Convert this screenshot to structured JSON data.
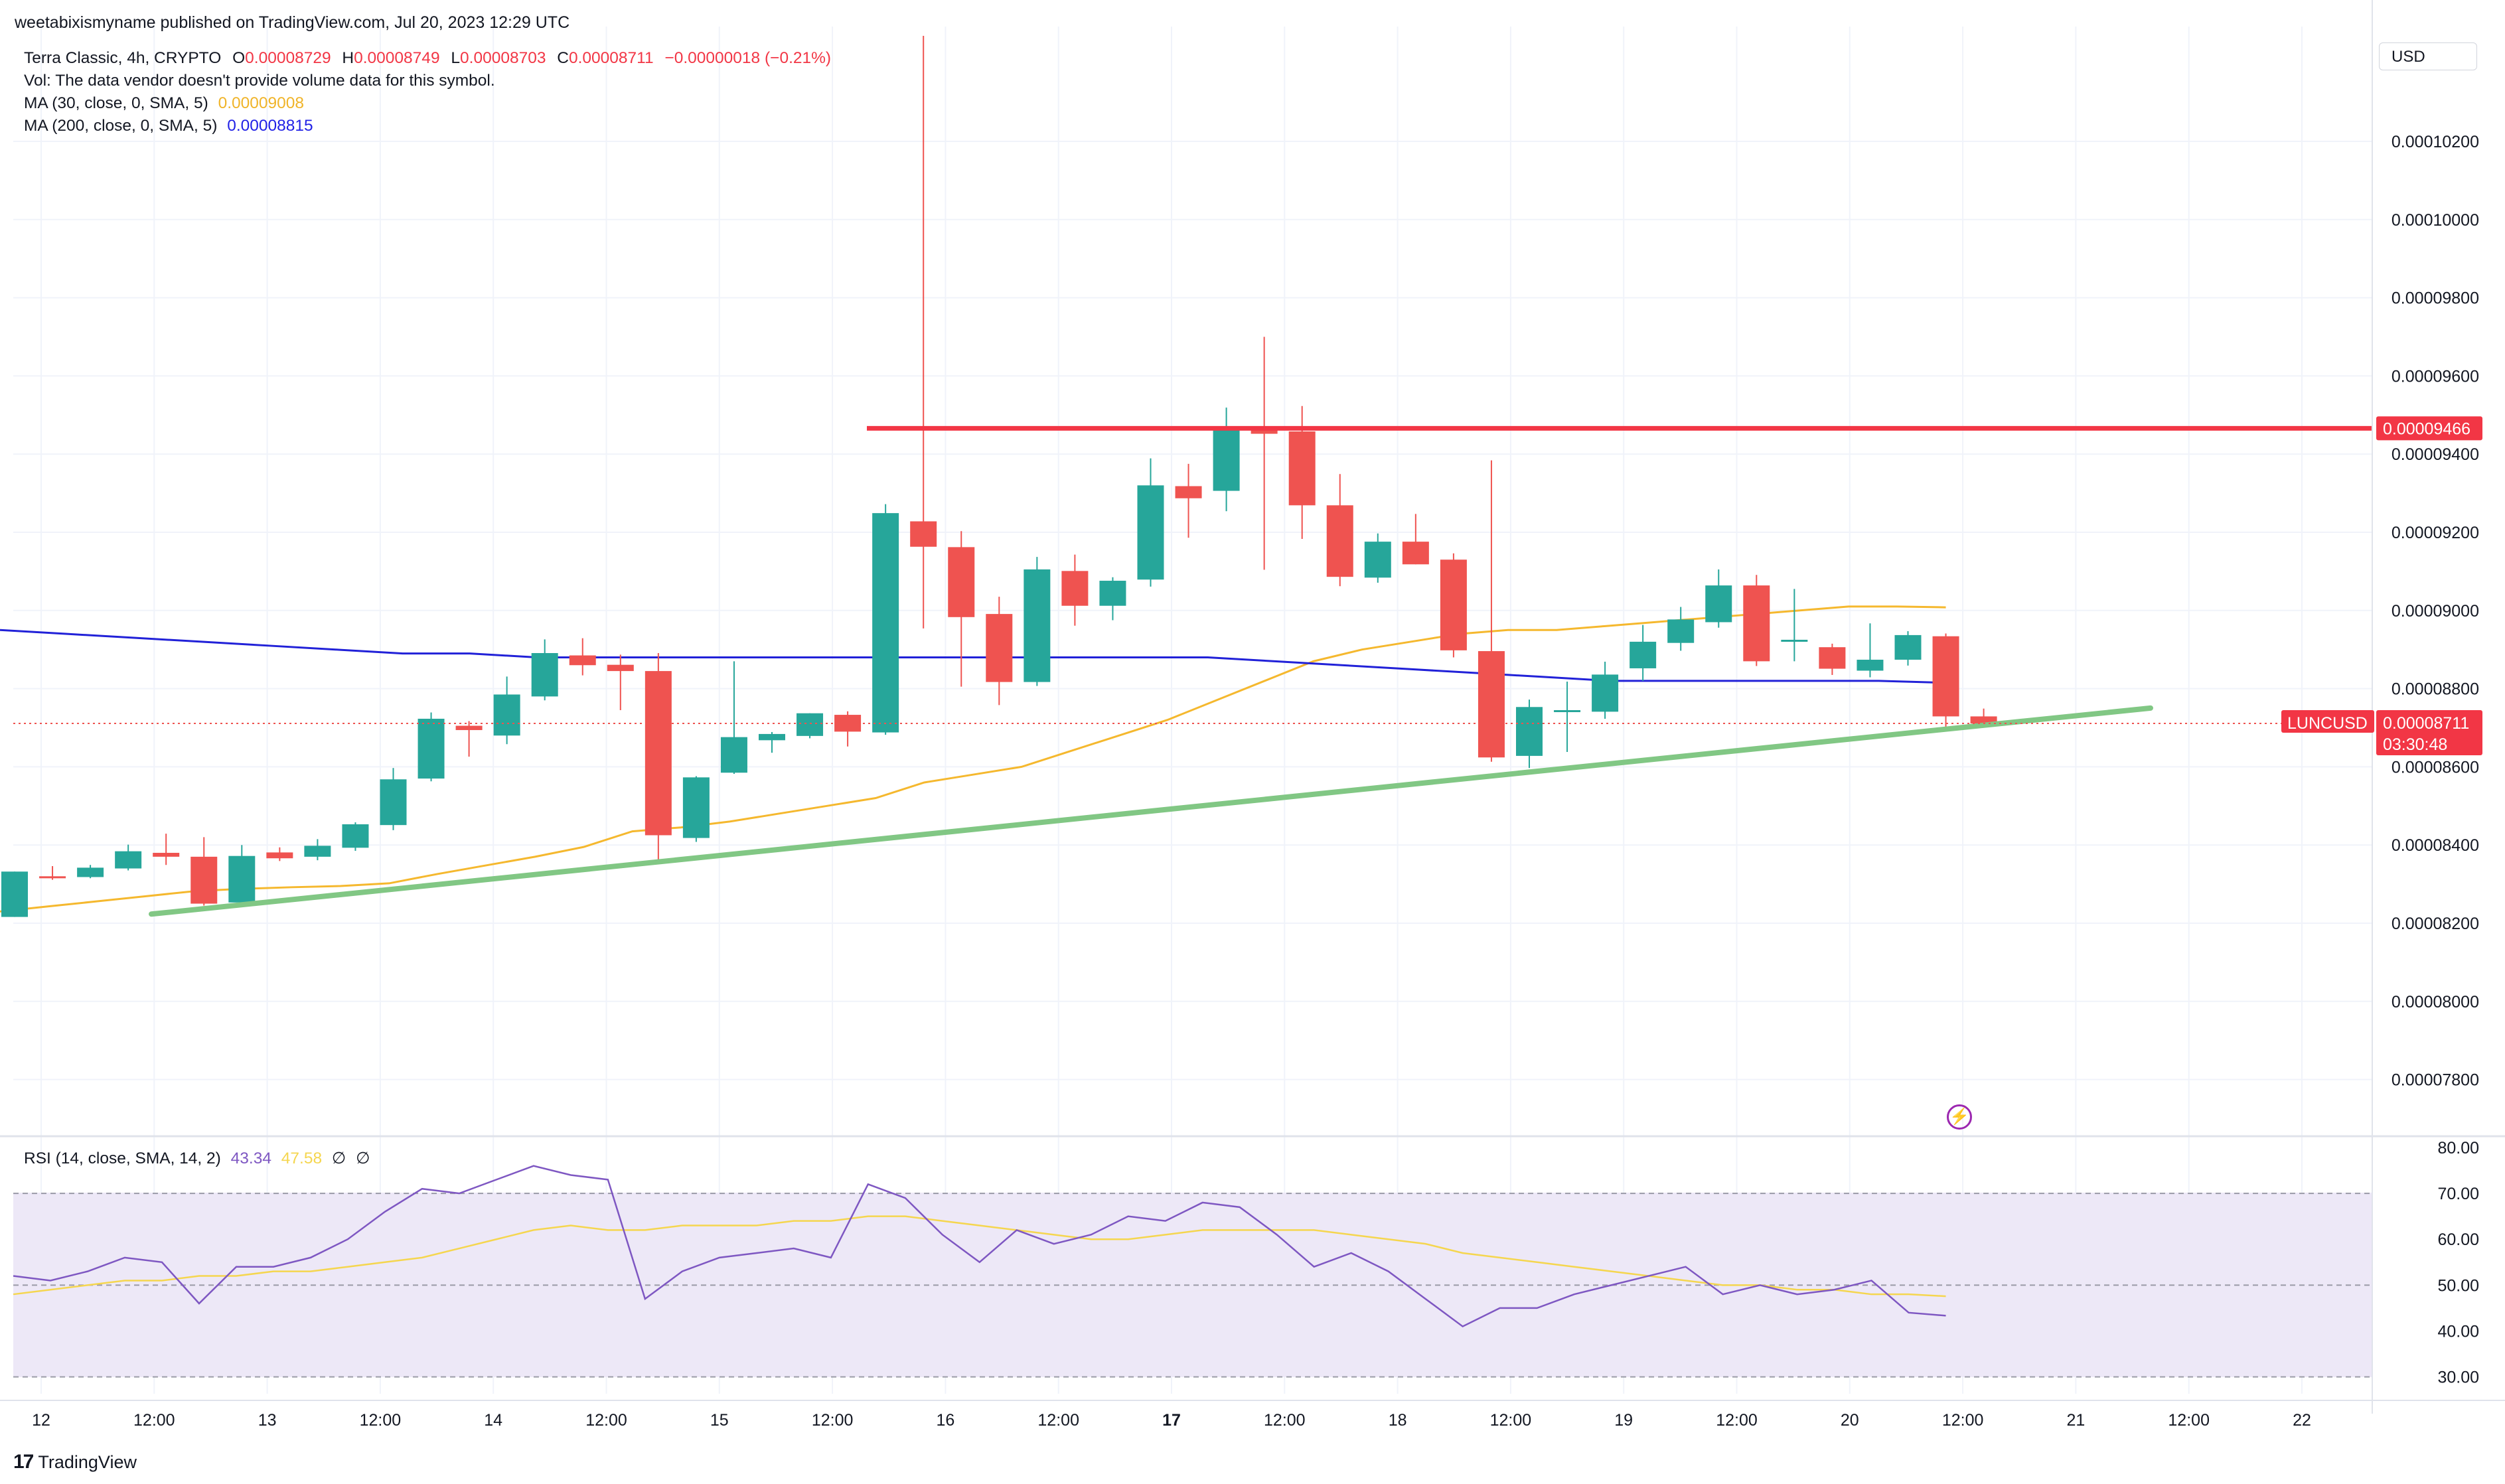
{
  "header": {
    "publisher": "weetabixismyname published on TradingView.com, Jul 20, 2023 12:29 UTC",
    "symbol_line": "Terra Classic, 4h, CRYPTO",
    "o_label": "O",
    "o_value": "0.00008729",
    "h_label": "H",
    "h_value": "0.00008749",
    "l_label": "L",
    "l_value": "0.00008703",
    "c_label": "C",
    "c_value": "0.00008711",
    "change": "−0.00000018 (−0.21%)",
    "vol_note": "Vol: The data vendor doesn't provide volume data for this symbol.",
    "ma30_label": "MA (30, close, 0, SMA, 5)",
    "ma30_value": "0.00009008",
    "ma200_label": "MA (200, close, 0, SMA, 5)",
    "ma200_value": "0.00008815"
  },
  "currency_button": "USD",
  "price_labels": {
    "resistance": "0.00009466",
    "symbol_tag": "LUNCUSD",
    "last_price": "0.00008711",
    "countdown": "03:30:48"
  },
  "rsi": {
    "label": "RSI (14, close, SMA, 14, 2)",
    "value": "43.34",
    "ma_value": "47.58",
    "extra1": "∅",
    "extra2": "∅"
  },
  "footer": {
    "brand": "TradingView",
    "brand_mark": "17"
  },
  "icons": {
    "alert": "lightning-icon"
  },
  "colors": {
    "up": "#26a69a",
    "down": "#ef5350",
    "ma30": "#f5b82e",
    "ma200": "#2121d8",
    "resistance": "#f23645",
    "trendline": "#81c784",
    "rsi": "#7e57c2",
    "rsi_ma": "#f5d64f",
    "rsi_band": "#ede8f7"
  },
  "chart_data": [
    {
      "type": "candlestick",
      "title": "Terra Classic, 4h, CRYPTO",
      "x_tick_labels": [
        "12",
        "12:00",
        "13",
        "12:00",
        "14",
        "12:00",
        "15",
        "12:00",
        "16",
        "12:00",
        "17",
        "12:00",
        "18",
        "12:00",
        "19",
        "12:00",
        "20",
        "12:00",
        "21",
        "12:00",
        "22"
      ],
      "y_tick_labels": [
        "0.00010200",
        "0.00010000",
        "0.00009800",
        "0.00009600",
        "0.00009400",
        "0.00009200",
        "0.00009000",
        "0.00008800",
        "0.00008600",
        "0.00008400",
        "0.00008200",
        "0.00008000",
        "0.00007800"
      ],
      "ylim": [
        7.74e-05,
        0.0001046
      ],
      "candles": [
        {
          "o": 8.216e-05,
          "h": 8.332e-05,
          "l": 8.216e-05,
          "c": 8.332e-05
        },
        {
          "o": 8.32e-05,
          "h": 8.346e-05,
          "l": 8.311e-05,
          "c": 8.318e-05
        },
        {
          "o": 8.318e-05,
          "h": 8.349e-05,
          "l": 8.315e-05,
          "c": 8.342e-05
        },
        {
          "o": 8.34e-05,
          "h": 8.401e-05,
          "l": 8.335e-05,
          "c": 8.384e-05
        },
        {
          "o": 8.38e-05,
          "h": 8.429e-05,
          "l": 8.349e-05,
          "c": 8.37e-05
        },
        {
          "o": 8.37e-05,
          "h": 8.42e-05,
          "l": 8.245e-05,
          "c": 8.25e-05
        },
        {
          "o": 8.253e-05,
          "h": 8.4e-05,
          "l": 8.253e-05,
          "c": 8.372e-05
        },
        {
          "o": 8.381e-05,
          "h": 8.394e-05,
          "l": 8.359e-05,
          "c": 8.366e-05
        },
        {
          "o": 8.37e-05,
          "h": 8.415e-05,
          "l": 8.361e-05,
          "c": 8.398e-05
        },
        {
          "o": 8.393e-05,
          "h": 8.458e-05,
          "l": 8.385e-05,
          "c": 8.453e-05
        },
        {
          "o": 8.451e-05,
          "h": 8.597e-05,
          "l": 8.438e-05,
          "c": 8.568e-05
        },
        {
          "o": 8.57e-05,
          "h": 8.739e-05,
          "l": 8.563e-05,
          "c": 8.723e-05
        },
        {
          "o": 8.705e-05,
          "h": 8.717e-05,
          "l": 8.626e-05,
          "c": 8.694e-05
        },
        {
          "o": 8.68e-05,
          "h": 8.831e-05,
          "l": 8.658e-05,
          "c": 8.785e-05
        },
        {
          "o": 8.78e-05,
          "h": 8.926e-05,
          "l": 8.77e-05,
          "c": 8.891e-05
        },
        {
          "o": 8.885e-05,
          "h": 8.929e-05,
          "l": 8.834e-05,
          "c": 8.86e-05
        },
        {
          "o": 8.861e-05,
          "h": 8.887e-05,
          "l": 8.745e-05,
          "c": 8.845e-05
        },
        {
          "o": 8.845e-05,
          "h": 8.891e-05,
          "l": 8.354e-05,
          "c": 8.425e-05
        },
        {
          "o": 8.418e-05,
          "h": 8.576e-05,
          "l": 8.408e-05,
          "c": 8.573e-05
        },
        {
          "o": 8.585e-05,
          "h": 8.87e-05,
          "l": 8.582e-05,
          "c": 8.676e-05
        },
        {
          "o": 8.668e-05,
          "h": 8.689e-05,
          "l": 8.636e-05,
          "c": 8.684e-05
        },
        {
          "o": 8.679e-05,
          "h": 8.737e-05,
          "l": 8.673e-05,
          "c": 8.737e-05
        },
        {
          "o": 8.733e-05,
          "h": 8.742e-05,
          "l": 8.652e-05,
          "c": 8.69e-05
        },
        {
          "o": 8.688e-05,
          "h": 9.272e-05,
          "l": 8.682e-05,
          "c": 9.249e-05
        },
        {
          "o": 9.228e-05,
          "h": 0.0001047,
          "l": 8.954e-05,
          "c": 9.163e-05
        },
        {
          "o": 9.162e-05,
          "h": 9.203e-05,
          "l": 8.805e-05,
          "c": 8.983e-05
        },
        {
          "o": 8.991e-05,
          "h": 9.035e-05,
          "l": 8.758e-05,
          "c": 8.817e-05
        },
        {
          "o": 8.817e-05,
          "h": 9.137e-05,
          "l": 8.807e-05,
          "c": 9.105e-05
        },
        {
          "o": 9.101e-05,
          "h": 9.143e-05,
          "l": 8.961e-05,
          "c": 9.012e-05
        },
        {
          "o": 9.012e-05,
          "h": 9.085e-05,
          "l": 8.975e-05,
          "c": 9.076e-05
        },
        {
          "o": 9.079e-05,
          "h": 9.389e-05,
          "l": 9.061e-05,
          "c": 9.32e-05
        },
        {
          "o": 9.318e-05,
          "h": 9.375e-05,
          "l": 9.186e-05,
          "c": 9.287e-05
        },
        {
          "o": 9.306e-05,
          "h": 9.519e-05,
          "l": 9.254e-05,
          "c": 9.469e-05
        },
        {
          "o": 9.466e-05,
          "h": 9.7e-05,
          "l": 9.104e-05,
          "c": 9.452e-05
        },
        {
          "o": 9.458e-05,
          "h": 9.523e-05,
          "l": 9.183e-05,
          "c": 9.269e-05
        },
        {
          "o": 9.269e-05,
          "h": 9.349e-05,
          "l": 9.062e-05,
          "c": 9.086e-05
        },
        {
          "o": 9.084e-05,
          "h": 9.197e-05,
          "l": 9.071e-05,
          "c": 9.176e-05
        },
        {
          "o": 9.176e-05,
          "h": 9.247e-05,
          "l": 9.118e-05,
          "c": 9.118e-05
        },
        {
          "o": 9.13e-05,
          "h": 9.146e-05,
          "l": 8.88e-05,
          "c": 8.898e-05
        },
        {
          "o": 8.896e-05,
          "h": 9.384e-05,
          "l": 8.613e-05,
          "c": 8.624e-05
        },
        {
          "o": 8.628e-05,
          "h": 8.772e-05,
          "l": 8.597e-05,
          "c": 8.753e-05
        },
        {
          "o": 8.745e-05,
          "h": 8.818e-05,
          "l": 8.638e-05,
          "c": 8.745e-05
        },
        {
          "o": 8.741e-05,
          "h": 8.869e-05,
          "l": 8.723e-05,
          "c": 8.836e-05
        },
        {
          "o": 8.852e-05,
          "h": 8.963e-05,
          "l": 8.82e-05,
          "c": 8.92e-05
        },
        {
          "o": 8.917e-05,
          "h": 9.009e-05,
          "l": 8.897e-05,
          "c": 8.977e-05
        },
        {
          "o": 8.97e-05,
          "h": 9.105e-05,
          "l": 8.956e-05,
          "c": 9.064e-05
        },
        {
          "o": 9.064e-05,
          "h": 9.091e-05,
          "l": 8.858e-05,
          "c": 8.87e-05
        },
        {
          "o": 8.922e-05,
          "h": 9.055e-05,
          "l": 8.87e-05,
          "c": 8.925e-05
        },
        {
          "o": 8.906e-05,
          "h": 8.915e-05,
          "l": 8.835e-05,
          "c": 8.851e-05
        },
        {
          "o": 8.846e-05,
          "h": 8.967e-05,
          "l": 8.829e-05,
          "c": 8.874e-05
        },
        {
          "o": 8.874e-05,
          "h": 8.947e-05,
          "l": 8.859e-05,
          "c": 8.937e-05
        },
        {
          "o": 8.934e-05,
          "h": 8.941e-05,
          "l": 8.697e-05,
          "c": 8.729e-05
        },
        {
          "o": 8.729e-05,
          "h": 8.749e-05,
          "l": 8.703e-05,
          "c": 8.711e-05
        }
      ],
      "series": [
        {
          "name": "MA (30, close, 0, SMA, 5)",
          "values": [
            8.23e-05,
            8.243e-05,
            8.256e-05,
            8.269e-05,
            8.282e-05,
            8.288e-05,
            8.292e-05,
            8.295e-05,
            8.302e-05,
            8.326e-05,
            8.348e-05,
            8.37e-05,
            8.395e-05,
            8.435e-05,
            8.445e-05,
            8.46e-05,
            8.48e-05,
            8.5e-05,
            8.52e-05,
            8.56e-05,
            8.58e-05,
            8.6e-05,
            8.64e-05,
            8.68e-05,
            8.72e-05,
            8.77e-05,
            8.82e-05,
            8.87e-05,
            8.9e-05,
            8.92e-05,
            8.94e-05,
            8.95e-05,
            8.95e-05,
            8.96e-05,
            8.97e-05,
            8.98e-05,
            8.99e-05,
            9e-05,
            9.01e-05,
            9.01e-05,
            9.008e-05
          ]
        }
      ],
      "ma200": [
        8.95e-05,
        8.94e-05,
        8.93e-05,
        8.92e-05,
        8.91e-05,
        8.9e-05,
        8.89e-05,
        8.89e-05,
        8.88e-05,
        8.88e-05,
        8.88e-05,
        8.88e-05,
        8.88e-05,
        8.88e-05,
        8.88e-05,
        8.88e-05,
        8.88e-05,
        8.88e-05,
        8.88e-05,
        8.87e-05,
        8.86e-05,
        8.85e-05,
        8.84e-05,
        8.83e-05,
        8.82e-05,
        8.82e-05,
        8.82e-05,
        8.82e-05,
        8.82e-05,
        8.815e-05
      ],
      "resistance_level": 9.466e-05,
      "trendline": [
        [
          8.2233e-05,
          8.7503e-05
        ]
      ],
      "last_price": 8.711e-05
    },
    {
      "type": "line",
      "title": "RSI (14, close, SMA, 14, 2)",
      "y_tick_labels": [
        "80.00",
        "70.00",
        "60.00",
        "50.00",
        "40.00",
        "30.00"
      ],
      "ylim": [
        27.5,
        81
      ],
      "bands": [
        30,
        50,
        70
      ],
      "series": [
        {
          "name": "RSI",
          "values": [
            52,
            51,
            53,
            56,
            55,
            46,
            54,
            54,
            56,
            60,
            66,
            71,
            70,
            73,
            76,
            74,
            73,
            47,
            53,
            56,
            57,
            58,
            56,
            72,
            69,
            61,
            55,
            62,
            59,
            61,
            65,
            64,
            68,
            67,
            61,
            54,
            57,
            53,
            47,
            41,
            45,
            45,
            48,
            50,
            52,
            54,
            48,
            50,
            48,
            49,
            51,
            44,
            43.34
          ]
        },
        {
          "name": "RSI MA",
          "values": [
            48,
            49,
            50,
            51,
            51,
            52,
            52,
            53,
            53,
            54,
            55,
            56,
            58,
            60,
            62,
            63,
            62,
            62,
            63,
            63,
            63,
            64,
            64,
            65,
            65,
            64,
            63,
            62,
            61,
            60,
            60,
            61,
            62,
            62,
            62,
            62,
            61,
            60,
            59,
            57,
            56,
            55,
            54,
            53,
            52,
            51,
            50,
            50,
            49,
            49,
            48,
            48,
            47.58
          ]
        }
      ]
    }
  ]
}
